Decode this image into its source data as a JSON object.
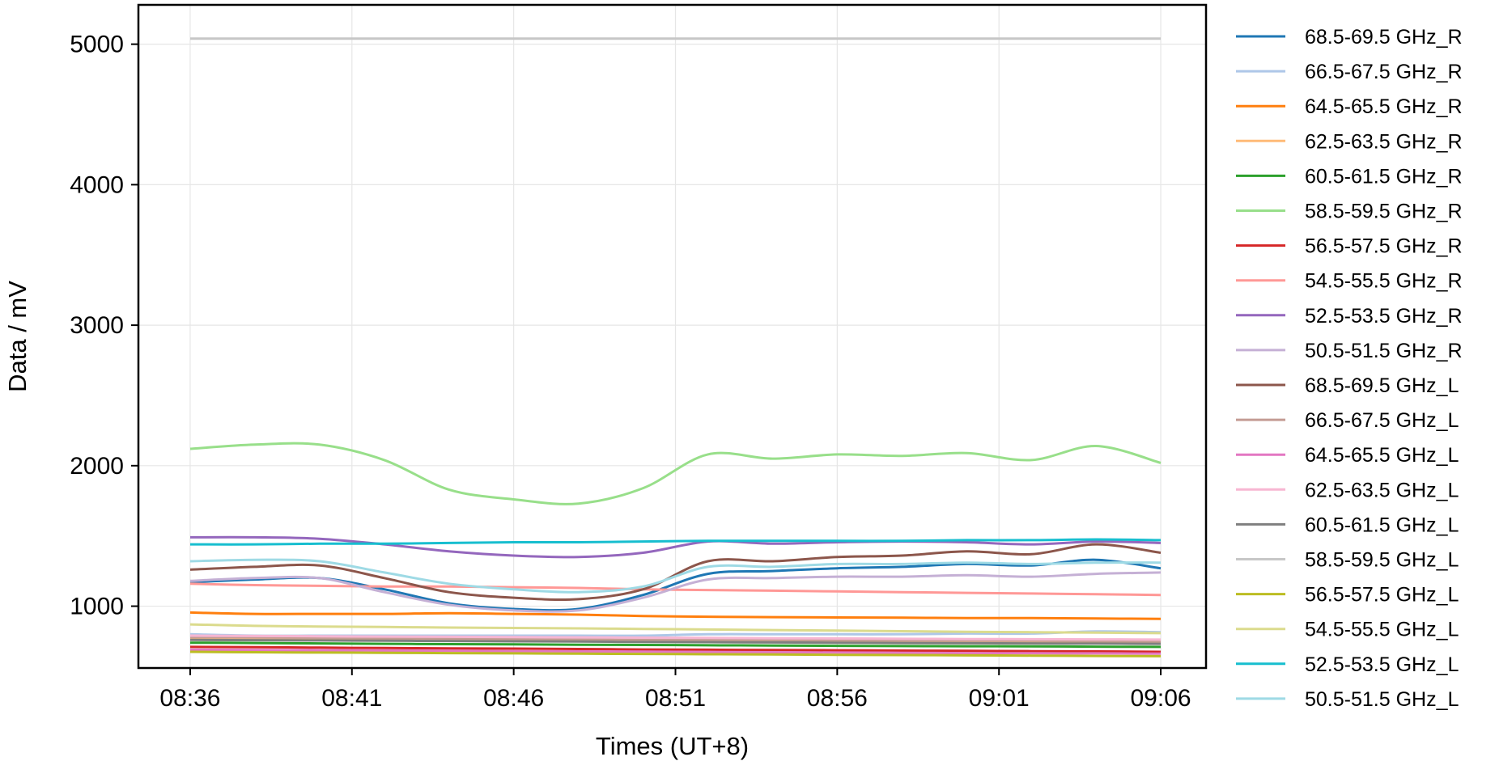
{
  "chart_data": {
    "type": "line",
    "xlabel": "Times (UT+8)",
    "ylabel": "Data / mV",
    "x_ticks": [
      "08:36",
      "08:41",
      "08:46",
      "08:51",
      "08:56",
      "09:01",
      "09:06"
    ],
    "y_ticks": [
      1000,
      2000,
      3000,
      4000,
      5000
    ],
    "xlim_minutes": [
      -1.6,
      31.4
    ],
    "ylim": [
      560,
      5280
    ],
    "grid": true,
    "legend_position": "outside-right",
    "x_minutes": [
      0,
      2,
      4,
      6,
      8,
      10,
      12,
      14,
      16,
      18,
      20,
      22,
      24,
      26,
      28,
      30
    ],
    "series": [
      {
        "name": "68.5-69.5 GHz_R",
        "color": "#1f77b4",
        "values": [
          1170,
          1190,
          1200,
          1120,
          1020,
          980,
          980,
          1080,
          1230,
          1250,
          1270,
          1280,
          1300,
          1290,
          1330,
          1270
        ]
      },
      {
        "name": "66.5-67.5 GHz_R",
        "color": "#aec7e8",
        "values": [
          800,
          790,
          790,
          790,
          790,
          790,
          790,
          790,
          800,
          800,
          800,
          800,
          805,
          805,
          820,
          815
        ]
      },
      {
        "name": "64.5-65.5 GHz_R",
        "color": "#ff7f0e",
        "values": [
          955,
          945,
          945,
          945,
          950,
          945,
          940,
          930,
          925,
          922,
          920,
          918,
          915,
          915,
          912,
          910
        ]
      },
      {
        "name": "62.5-63.5 GHz_R",
        "color": "#ffbb78",
        "values": [
          770,
          768,
          765,
          762,
          760,
          758,
          756,
          755,
          752,
          750,
          748,
          746,
          745,
          745,
          742,
          740
        ]
      },
      {
        "name": "60.5-61.5 GHz_R",
        "color": "#2ca02c",
        "values": [
          740,
          738,
          735,
          732,
          730,
          728,
          726,
          724,
          722,
          720,
          718,
          716,
          715,
          714,
          712,
          710
        ]
      },
      {
        "name": "58.5-59.5 GHz_R",
        "color": "#98df8a",
        "values": [
          2120,
          2150,
          2150,
          2040,
          1830,
          1760,
          1730,
          1840,
          2080,
          2050,
          2080,
          2070,
          2090,
          2040,
          2140,
          2020
        ]
      },
      {
        "name": "56.5-57.5 GHz_R",
        "color": "#d62728",
        "values": [
          710,
          708,
          705,
          702,
          700,
          698,
          695,
          692,
          690,
          688,
          686,
          684,
          682,
          680,
          678,
          675
        ]
      },
      {
        "name": "54.5-55.5 GHz_R",
        "color": "#ff9896",
        "values": [
          1160,
          1150,
          1145,
          1140,
          1140,
          1135,
          1130,
          1120,
          1115,
          1110,
          1105,
          1100,
          1095,
          1090,
          1085,
          1080
        ]
      },
      {
        "name": "52.5-53.5 GHz_R",
        "color": "#9467bd",
        "values": [
          1490,
          1490,
          1480,
          1440,
          1390,
          1360,
          1350,
          1380,
          1460,
          1445,
          1455,
          1460,
          1455,
          1440,
          1460,
          1450
        ]
      },
      {
        "name": "50.5-51.5 GHz_R",
        "color": "#c5b0d5",
        "values": [
          1180,
          1200,
          1200,
          1100,
          1010,
          970,
          970,
          1060,
          1190,
          1200,
          1210,
          1210,
          1220,
          1210,
          1230,
          1240
        ]
      },
      {
        "name": "68.5-69.5 GHz_L",
        "color": "#8c564b",
        "values": [
          1260,
          1280,
          1290,
          1200,
          1100,
          1060,
          1050,
          1120,
          1320,
          1320,
          1350,
          1360,
          1390,
          1370,
          1440,
          1380
        ]
      },
      {
        "name": "66.5-67.5 GHz_L",
        "color": "#c49c94",
        "values": [
          780,
          778,
          775,
          772,
          770,
          768,
          766,
          764,
          762,
          760,
          758,
          756,
          755,
          754,
          752,
          750
        ]
      },
      {
        "name": "64.5-65.5 GHz_L",
        "color": "#e377c2",
        "values": [
          690,
          688,
          686,
          684,
          682,
          680,
          678,
          676,
          674,
          672,
          670,
          668,
          666,
          665,
          664,
          662
        ]
      },
      {
        "name": "62.5-63.5 GHz_L",
        "color": "#f7b6d2",
        "values": [
          790,
          788,
          786,
          784,
          782,
          780,
          778,
          776,
          774,
          772,
          770,
          768,
          766,
          765,
          764,
          762
        ]
      },
      {
        "name": "60.5-61.5 GHz_L",
        "color": "#7f7f7f",
        "values": [
          760,
          758,
          756,
          754,
          752,
          750,
          748,
          746,
          744,
          742,
          740,
          738,
          736,
          735,
          734,
          732
        ]
      },
      {
        "name": "58.5-59.5 GHz_L",
        "color": "#c7c7c7",
        "values": [
          5040,
          5040,
          5040,
          5040,
          5040,
          5040,
          5040,
          5040,
          5040,
          5040,
          5040,
          5040,
          5040,
          5040,
          5040,
          5040
        ]
      },
      {
        "name": "56.5-57.5 GHz_L",
        "color": "#bcbd22",
        "values": [
          675,
          672,
          670,
          668,
          666,
          664,
          662,
          660,
          658,
          656,
          654,
          652,
          650,
          648,
          646,
          644
        ]
      },
      {
        "name": "54.5-55.5 GHz_L",
        "color": "#dbdb8d",
        "values": [
          870,
          860,
          855,
          852,
          848,
          845,
          842,
          838,
          834,
          830,
          826,
          822,
          818,
          815,
          812,
          808
        ]
      },
      {
        "name": "52.5-53.5 GHz_L",
        "color": "#17becf",
        "values": [
          1440,
          1440,
          1445,
          1445,
          1450,
          1455,
          1455,
          1460,
          1465,
          1465,
          1465,
          1465,
          1470,
          1470,
          1475,
          1470
        ]
      },
      {
        "name": "50.5-51.5 GHz_L",
        "color": "#9edae5",
        "values": [
          1320,
          1330,
          1320,
          1240,
          1160,
          1120,
          1100,
          1140,
          1280,
          1280,
          1300,
          1300,
          1310,
          1300,
          1310,
          1310
        ]
      }
    ]
  }
}
